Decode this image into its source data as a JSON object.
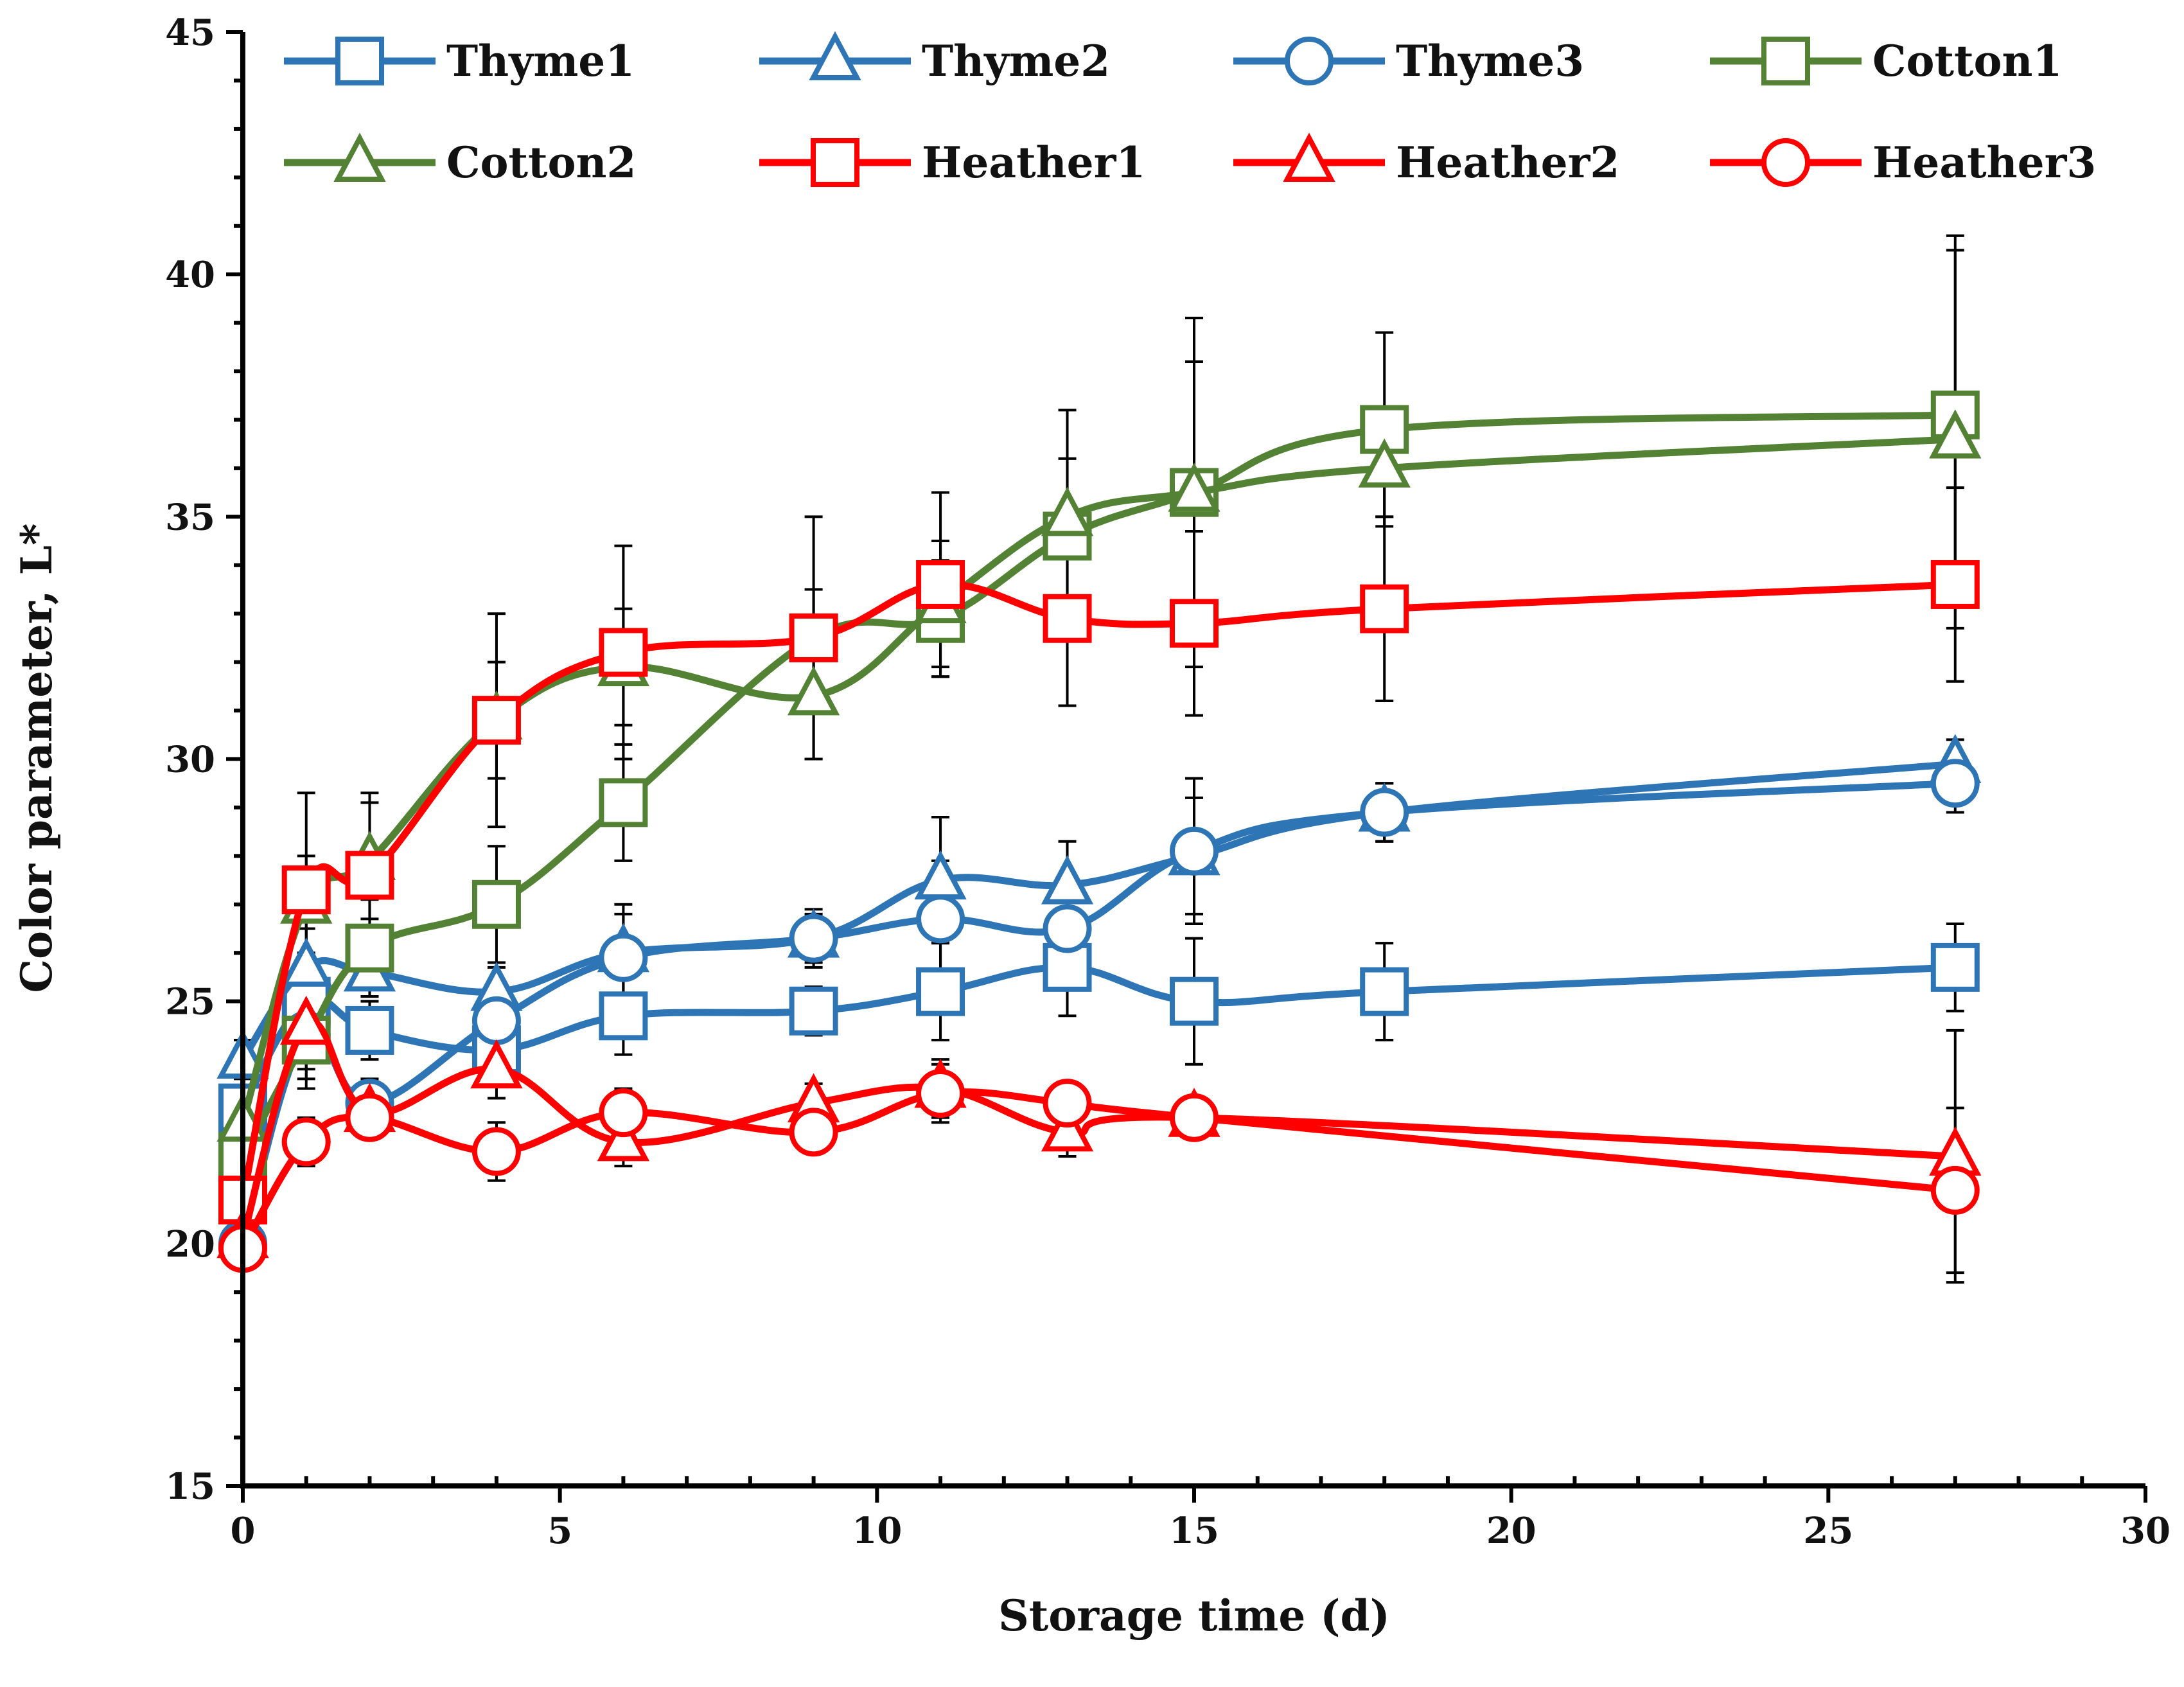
{
  "chart_data": {
    "type": "line",
    "title": "",
    "xlabel": "Storage time (d)",
    "ylabel": "Color parameter, L*",
    "xlim": [
      0,
      30
    ],
    "ylim": [
      15,
      45
    ],
    "xticks": [
      0,
      5,
      10,
      15,
      20,
      25,
      30
    ],
    "yticks": [
      15,
      20,
      25,
      30,
      35,
      40,
      45
    ],
    "xtick_labels": [
      "0",
      "5",
      "10",
      "15",
      "20",
      "25",
      "30"
    ],
    "ytick_labels": [
      "15",
      "20",
      "25",
      "30",
      "35",
      "40",
      "45"
    ],
    "legend_position": "top",
    "series": [
      {
        "name": "Thyme1",
        "color": "#2e75b6",
        "marker": "square",
        "x": [
          0,
          1,
          2,
          4,
          6,
          9,
          11,
          13,
          15,
          18,
          27
        ],
        "y": [
          22.8,
          25.0,
          24.4,
          24.0,
          24.7,
          24.8,
          25.2,
          25.7,
          25.0,
          25.2,
          25.7
        ],
        "err": [
          0.4,
          0.9,
          0.6,
          0.6,
          0.8,
          0.5,
          1.0,
          1.0,
          1.3,
          1.0,
          0.9
        ]
      },
      {
        "name": "Thyme2",
        "color": "#2e75b6",
        "marker": "triangle",
        "x": [
          0,
          1,
          2,
          4,
          6,
          9,
          11,
          13,
          15,
          18,
          27
        ],
        "y": [
          23.8,
          25.7,
          25.6,
          25.2,
          26.0,
          26.3,
          27.5,
          27.4,
          28.0,
          28.9,
          29.9
        ],
        "err": [
          0.4,
          0.8,
          0.5,
          0.5,
          1.0,
          0.6,
          1.3,
          0.9,
          1.2,
          0.6,
          0.5
        ]
      },
      {
        "name": "Thyme3",
        "color": "#2e75b6",
        "marker": "circle",
        "x": [
          0,
          1,
          2,
          4,
          6,
          9,
          11,
          13,
          15,
          18,
          27
        ],
        "y": [
          20.0,
          24.3,
          22.9,
          24.6,
          25.9,
          26.3,
          26.7,
          26.5,
          28.1,
          28.9,
          29.5
        ],
        "err": [
          0.4,
          0.9,
          0.5,
          0.8,
          0.9,
          0.5,
          1.2,
          0.8,
          1.5,
          0.6,
          0.6
        ]
      },
      {
        "name": "Cotton1",
        "color": "#548235",
        "marker": "square",
        "x": [
          0,
          1,
          2,
          4,
          6,
          9,
          11,
          13,
          15,
          18,
          27
        ],
        "y": [
          21.8,
          24.2,
          26.1,
          27.0,
          29.1,
          32.5,
          32.9,
          34.6,
          35.5,
          36.8,
          37.1
        ],
        "err": [
          0.4,
          1.0,
          1.0,
          1.2,
          1.2,
          1.0,
          1.2,
          1.6,
          2.7,
          2.0,
          3.7
        ]
      },
      {
        "name": "Cotton2",
        "color": "#548235",
        "marker": "triangle",
        "x": [
          0,
          1,
          2,
          4,
          6,
          9,
          11,
          13,
          15,
          18,
          27
        ],
        "y": [
          22.5,
          27.0,
          27.9,
          30.8,
          31.9,
          31.3,
          33.2,
          35.0,
          35.5,
          36.0,
          36.6
        ],
        "err": [
          0.4,
          1.0,
          1.2,
          1.2,
          1.2,
          1.3,
          1.3,
          2.2,
          3.6,
          1.0,
          3.9
        ]
      },
      {
        "name": "Heather1",
        "color": "#ff0000",
        "marker": "square",
        "x": [
          0,
          1,
          2,
          4,
          6,
          9,
          11,
          13,
          15,
          18,
          27
        ],
        "y": [
          20.9,
          27.3,
          27.6,
          30.8,
          32.2,
          32.5,
          33.6,
          32.9,
          32.8,
          33.1,
          33.6
        ],
        "err": [
          0.4,
          2.0,
          1.7,
          2.2,
          2.2,
          2.5,
          1.9,
          1.8,
          1.9,
          1.9,
          2.0
        ]
      },
      {
        "name": "Heather2",
        "color": "#ff0000",
        "marker": "triangle",
        "x": [
          0,
          1,
          2,
          4,
          6,
          9,
          11,
          13,
          15,
          18,
          27
        ],
        "y": [
          20.1,
          24.5,
          22.7,
          23.6,
          22.1,
          22.9,
          23.2,
          22.3,
          22.6,
          null,
          21.8
        ],
        "err": [
          0.4,
          0.9,
          0.4,
          0.6,
          0.5,
          0.4,
          0.6,
          0.5,
          0.4,
          null,
          2.6
        ]
      },
      {
        "name": "Heather3",
        "color": "#ff0000",
        "marker": "circle",
        "x": [
          0,
          1,
          2,
          4,
          6,
          9,
          11,
          13,
          15,
          18,
          27
        ],
        "y": [
          19.9,
          22.1,
          22.6,
          21.9,
          22.7,
          22.3,
          23.1,
          22.9,
          22.6,
          null,
          21.1
        ],
        "err": [
          0.4,
          0.5,
          0.4,
          0.6,
          0.5,
          0.4,
          0.6,
          0.4,
          0.4,
          null,
          1.7
        ]
      }
    ]
  }
}
